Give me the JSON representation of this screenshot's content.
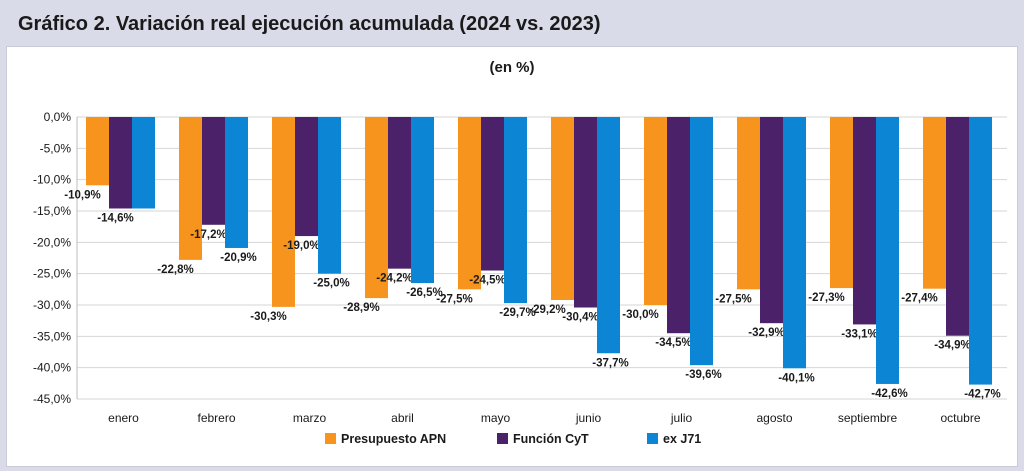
{
  "header": {
    "title": "Gráfico 2. Variación real ejecución acumulada (2024 vs. 2023)"
  },
  "chart_data": {
    "type": "bar",
    "title": "Gráfico 2. Variación real ejecución acumulada (2024 vs. 2023)",
    "subtitle": "(en %)",
    "categories": [
      "enero",
      "febrero",
      "marzo",
      "abril",
      "mayo",
      "junio",
      "julio",
      "agosto",
      "septiembre",
      "octubre"
    ],
    "series": [
      {
        "name": "Presupuesto APN",
        "color": "#f7941d",
        "values": [
          -10.9,
          -22.8,
          -30.3,
          -28.9,
          -27.5,
          -29.2,
          -30.0,
          -27.5,
          -27.3,
          -27.4
        ],
        "labels": [
          "-10,9%",
          "-22,8%",
          "-30,3%",
          "-28,9%",
          "-27,5%",
          "-29,2%",
          "-30,0%",
          "-27,5%",
          "-27,3%",
          "-27,4%"
        ]
      },
      {
        "name": "Función CyT",
        "color": "#4b2169",
        "values": [
          -14.6,
          -17.2,
          -19.0,
          -24.2,
          -24.5,
          -30.4,
          -34.5,
          -32.9,
          -33.1,
          -34.9
        ],
        "labels": [
          "-14,6%",
          "-17,2%",
          "-19,0%",
          "-24,2%",
          "-24,5%",
          "-30,4%",
          "-34,5%",
          "-32,9%",
          "-33,1%",
          "-34,9%"
        ]
      },
      {
        "name": "ex J71",
        "color": "#0c86d4",
        "values": [
          -14.6,
          -20.9,
          -25.0,
          -26.5,
          -29.7,
          -37.7,
          -39.6,
          -40.1,
          -42.6,
          -42.7
        ],
        "labels": [
          "",
          "-20,9%",
          "-25,0%",
          "-26,5%",
          "-29,7%",
          "-37,7%",
          "-39,6%",
          "-40,1%",
          "-42,6%",
          "-42,7%"
        ]
      }
    ],
    "ylim": [
      -45,
      0
    ],
    "yticks": [
      0,
      -5,
      -10,
      -15,
      -20,
      -25,
      -30,
      -35,
      -40,
      -45
    ],
    "ytick_labels": [
      "0,0%",
      "-5,0%",
      "-10,0%",
      "-15,0%",
      "-20,0%",
      "-25,0%",
      "-30,0%",
      "-35,0%",
      "-40,0%",
      "-45,0%"
    ],
    "grid": true,
    "legend_position": "bottom"
  }
}
